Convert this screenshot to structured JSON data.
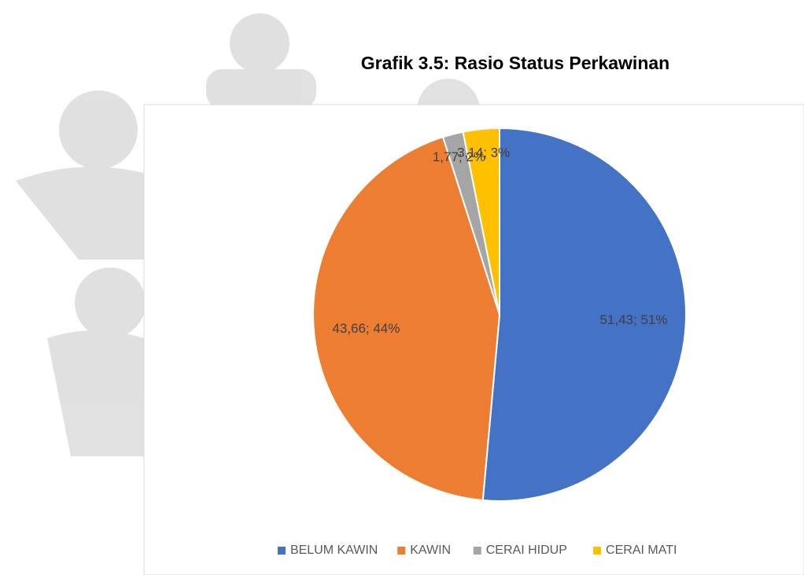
{
  "chart_data": {
    "type": "pie",
    "title": "Grafik 3.5: Rasio Status Perkawinan",
    "categories": [
      "BELUM KAWIN",
      "KAWIN",
      "CERAI HIDUP",
      "CERAI MATI"
    ],
    "values": [
      51.43,
      43.66,
      1.77,
      3.14
    ],
    "value_labels": [
      "51,43; 51%",
      "43,66; 44%",
      "1,77; 2%",
      "3,14; 3%"
    ],
    "colors": [
      "#4472c4",
      "#ed7d31",
      "#a5a5a5",
      "#ffc000"
    ],
    "legend": "bottom"
  }
}
